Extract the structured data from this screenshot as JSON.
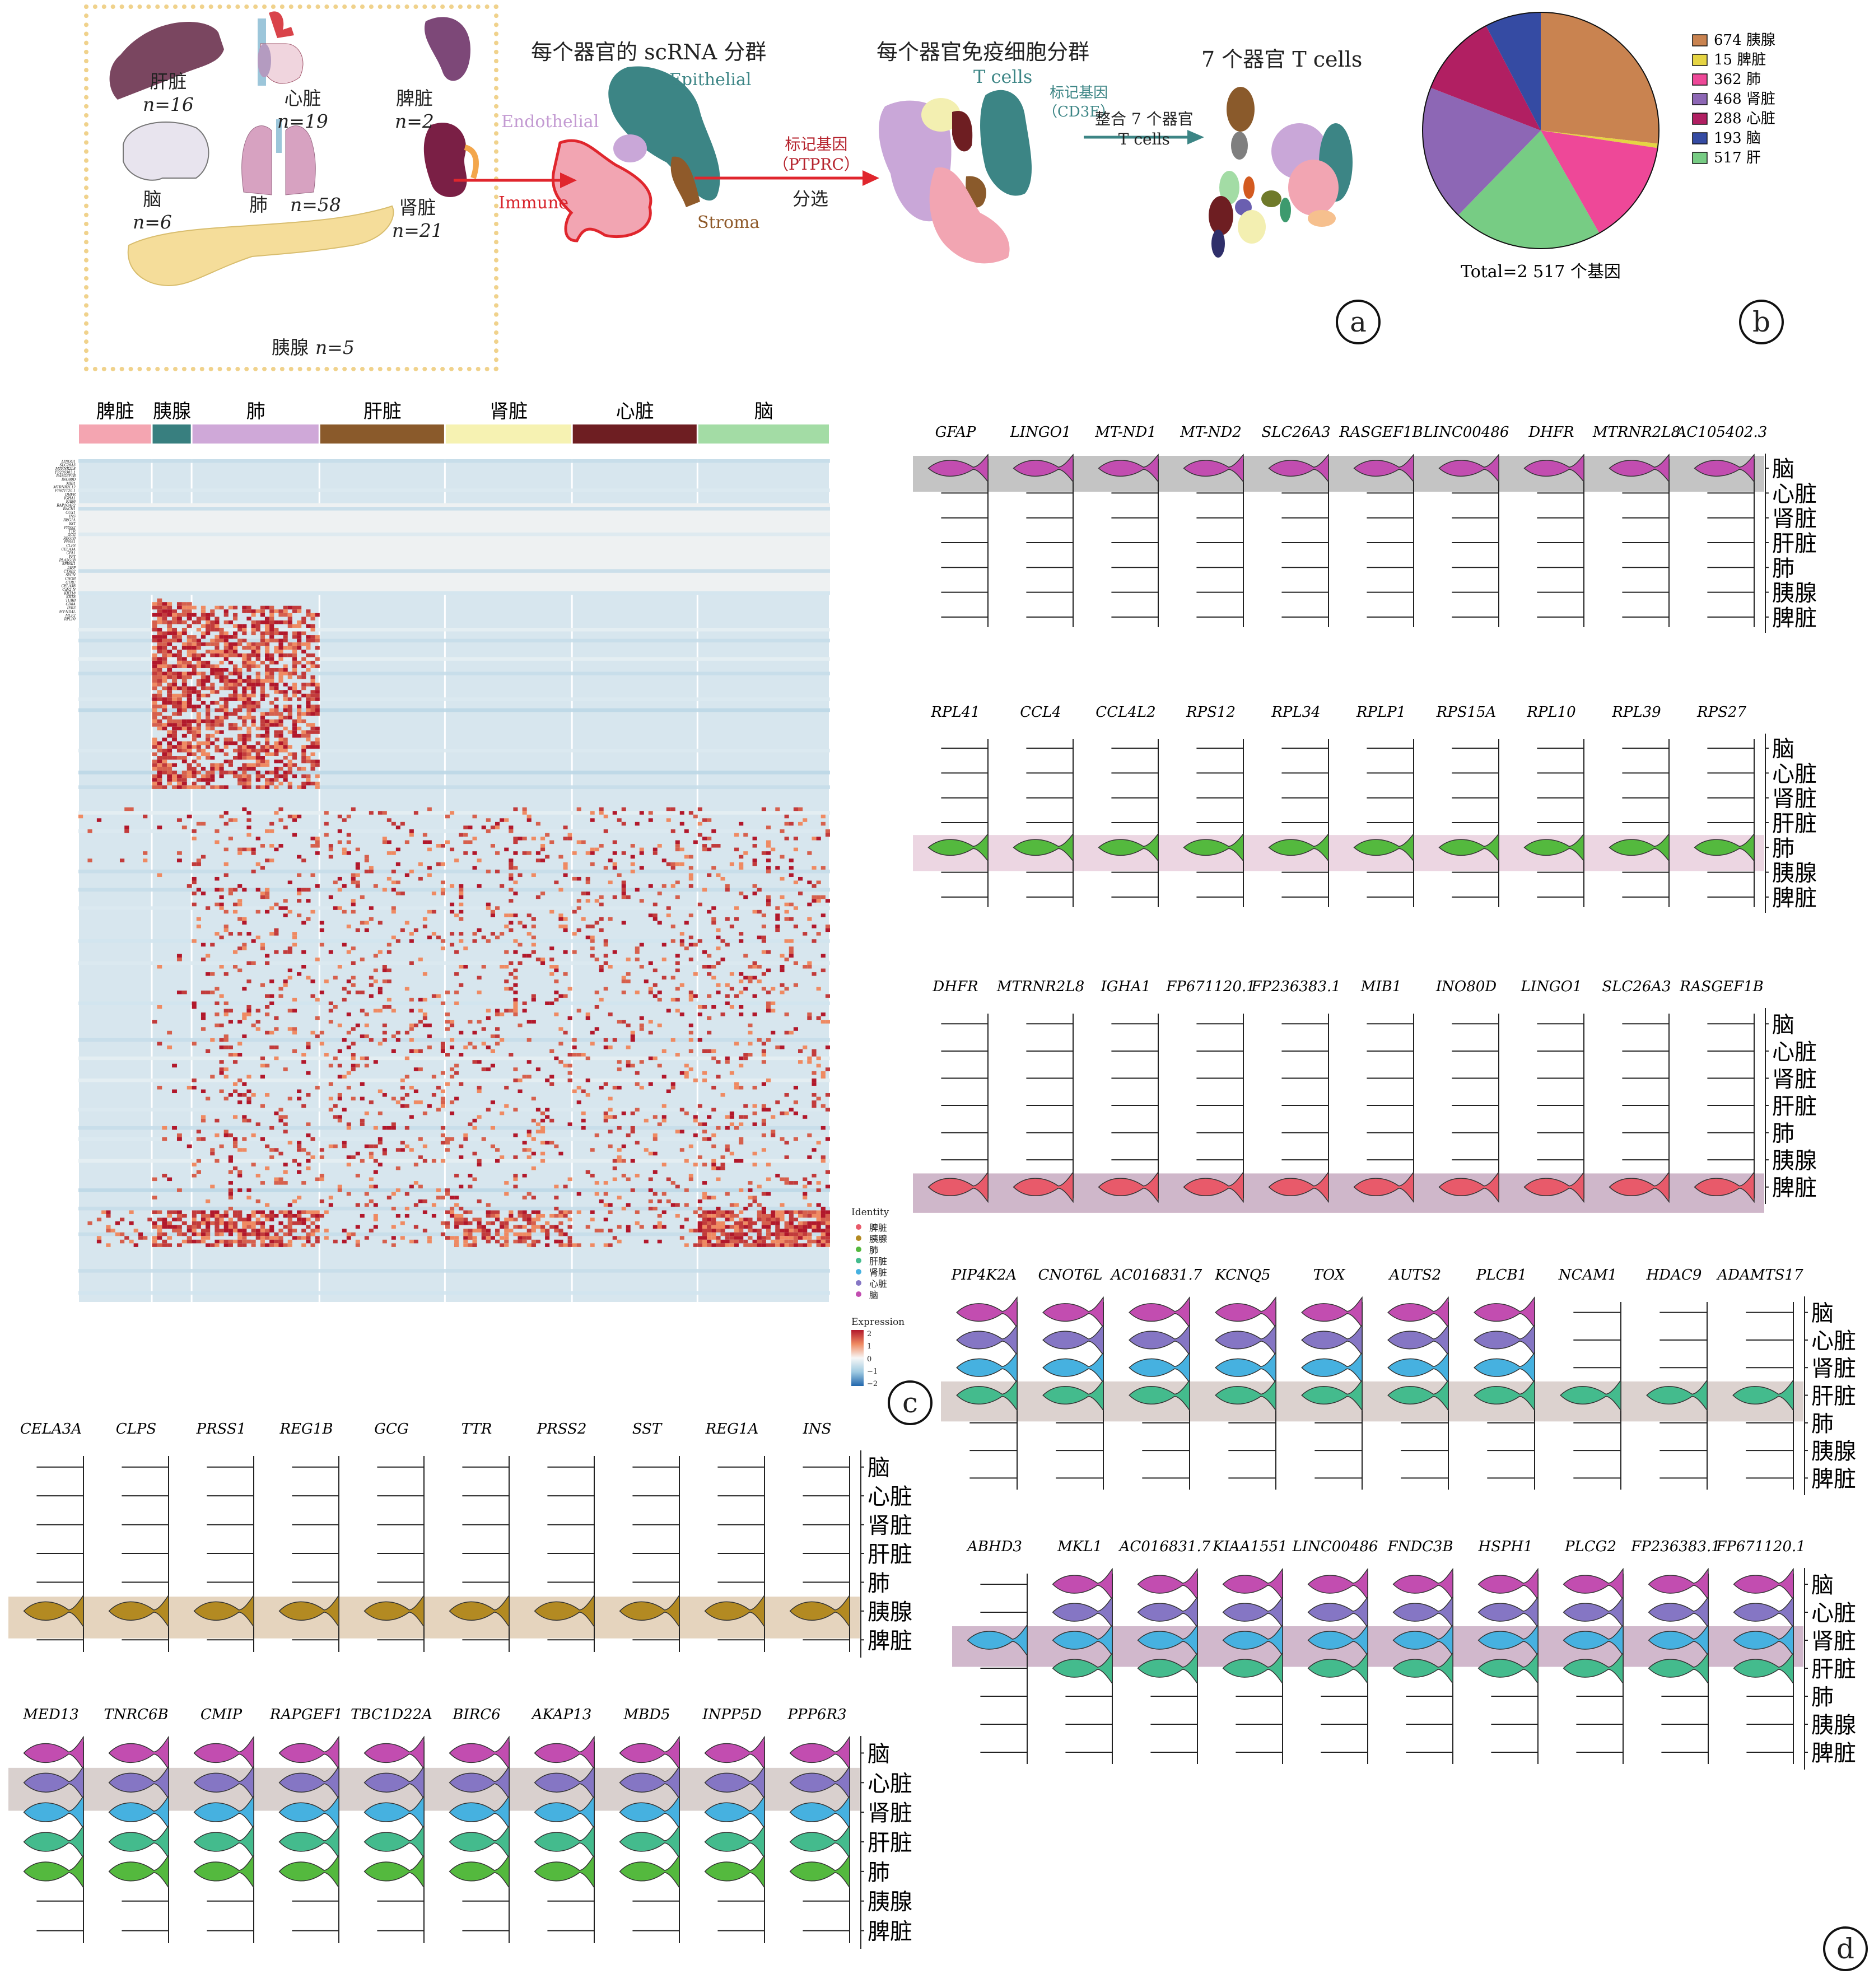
{
  "panels": {
    "a": "a",
    "b": "b",
    "c": "c",
    "d": "d"
  },
  "panel_a": {
    "organs": [
      {
        "name": "肝脏",
        "n": "n=16",
        "color": "#7a4660"
      },
      {
        "name": "心脏",
        "n": "n=19",
        "color": "#d9434a"
      },
      {
        "name": "脾脏",
        "n": "n=2",
        "color": "#7d4878"
      },
      {
        "name": "脑",
        "n": "n=6",
        "color": "#e8e4ee"
      },
      {
        "name": "肺",
        "n": "n=58",
        "color": "#d7a2c1"
      },
      {
        "name": "肾脏",
        "n": "n=21",
        "color": "#7a1f45"
      },
      {
        "name": "胰腺",
        "n": "n=5",
        "color": "#f5dd9a"
      }
    ],
    "step1_title": "每个器官的 scRNA 分群",
    "step2_title": "每个器官免疫细胞分群",
    "step3_title": "7 个器官 T cells",
    "clusters1": {
      "epithelial": "Epithelial",
      "endothelial": "Endothelial",
      "immune": "Immune",
      "stroma": "Stroma"
    },
    "arrow1_label1": "标记基因",
    "arrow1_label2": "（PTPRC）",
    "arrow1_label3": "分选",
    "tcells_label": "T cells",
    "marker2_label1": "标记基因",
    "marker2_label2": "（CD3E）",
    "arrow2_label1": "整合 7 个器官",
    "arrow2_label2": "T cells"
  },
  "chart_data": [
    {
      "type": "pie",
      "id": "panel-b",
      "title": "",
      "caption": "Total=2 517 个基因",
      "slices": [
        {
          "label": "674 胰腺",
          "organ": "胰腺",
          "value": 674,
          "color": "#c98350"
        },
        {
          "label": "15 脾脏",
          "organ": "脾脏",
          "value": 15,
          "color": "#e5d443"
        },
        {
          "label": "362 肺",
          "organ": "肺",
          "value": 362,
          "color": "#ee4898"
        },
        {
          "label": "517 肝",
          "organ": "肝",
          "value": 517,
          "color": "#77cc84"
        },
        {
          "label": "468 肾脏",
          "organ": "肾脏",
          "value": 468,
          "color": "#8d67b5"
        },
        {
          "label": "288 心脏",
          "organ": "心脏",
          "value": 288,
          "color": "#b11f62"
        },
        {
          "label": "193 脑",
          "organ": "脑",
          "value": 193,
          "color": "#354ba3"
        }
      ],
      "legend_order": [
        "674 胰腺",
        "15 脾脏",
        "362 肺",
        "468 肾脏",
        "288 心脏",
        "193 脑",
        "517 肝"
      ],
      "legend": "right"
    },
    {
      "type": "heatmap",
      "id": "panel-c",
      "groups": [
        {
          "label": "脾脏",
          "color": "#f4a5b1",
          "share": 0.098
        },
        {
          "label": "胰腺",
          "color": "#387f7f",
          "share": 0.053
        },
        {
          "label": "肺",
          "color": "#cfa8d8",
          "share": 0.17
        },
        {
          "label": "肝脏",
          "color": "#8a5a2b",
          "share": 0.167
        },
        {
          "label": "肾脏",
          "color": "#f6f2b2",
          "share": 0.169
        },
        {
          "label": "心脏",
          "color": "#6e1e22",
          "share": 0.167
        },
        {
          "label": "脑",
          "color": "#a3dca5",
          "share": 0.176
        }
      ],
      "row_labels_visible": [
        "LINGO1",
        "SLC26A3",
        "MTRNR2L8",
        "FP236383.1",
        "RASGEF1B",
        "INO80D",
        "MIB1",
        "MTRNR2L12",
        "FP671120.1",
        "DHFR",
        "IGHA1",
        "RAB6",
        "RAP1GAP2",
        "BACH1",
        "CUX1",
        "INS",
        "REG1A",
        "SST",
        "PRSS2",
        "TTR",
        "GCG",
        "REG1B",
        "PRSS1",
        "CLPS",
        "CELA3A",
        "CPA1",
        "PPY",
        "PLA2G1B",
        "SPINK1",
        "IAPP",
        "CTRB2",
        "SYCN",
        "CHGB",
        "CTRC",
        "CELA3B",
        "CaV2-N",
        "KRT18",
        "KRT8",
        "TUBB",
        "CD8A",
        "IER3",
        "MT-ND4L",
        "MLF2",
        "RPLP0"
      ],
      "legend_identity_title": "Identity",
      "legend_identity": [
        {
          "label": "脾脏",
          "color": "#e85a6a"
        },
        {
          "label": "胰腺",
          "color": "#b38a22"
        },
        {
          "label": "肺",
          "color": "#54b93e"
        },
        {
          "label": "肝脏",
          "color": "#44bb8d"
        },
        {
          "label": "肾脏",
          "color": "#46b1e0"
        },
        {
          "label": "心脏",
          "color": "#8576c4"
        },
        {
          "label": "脑",
          "color": "#c24db0"
        }
      ],
      "legend_expression_title": "Expression",
      "colorbar_ticks": [
        "2",
        "1",
        "0",
        "−1",
        "−2"
      ],
      "color_range": [
        -2,
        2
      ]
    },
    {
      "type": "violin",
      "id": "panel-c-pancreas",
      "highlight": "胰腺",
      "rows": [
        "脑",
        "心脏",
        "肾脏",
        "肝脏",
        "肺",
        "胰腺",
        "脾脏"
      ],
      "genes": [
        "CELA3A",
        "CLPS",
        "PRSS1",
        "REG1B",
        "GCG",
        "TTR",
        "PRSS2",
        "SST",
        "REG1A",
        "INS"
      ]
    },
    {
      "type": "violin",
      "id": "panel-d-heart",
      "highlight": "心脏",
      "rows": [
        "脑",
        "心脏",
        "肾脏",
        "肝脏",
        "肺",
        "胰腺",
        "脾脏"
      ],
      "genes": [
        "MED13",
        "TNRC6B",
        "CMIP",
        "RAPGEF1",
        "TBC1D22A",
        "BIRC6",
        "AKAP13",
        "MBD5",
        "INPP5D",
        "PPP6R3"
      ]
    },
    {
      "type": "violin",
      "id": "panel-d-brain",
      "highlight": "脑",
      "rows": [
        "脑",
        "心脏",
        "肾脏",
        "肝脏",
        "肺",
        "胰腺",
        "脾脏"
      ],
      "genes": [
        "GFAP",
        "LINGO1",
        "MT-ND1",
        "MT-ND2",
        "SLC26A3",
        "RASGEF1B",
        "LINC00486",
        "DHFR",
        "MTRNR2L8",
        "AC105402.3"
      ]
    },
    {
      "type": "violin",
      "id": "panel-d-lung",
      "highlight": "肺",
      "rows": [
        "脑",
        "心脏",
        "肾脏",
        "肝脏",
        "肺",
        "胰腺",
        "脾脏"
      ],
      "genes": [
        "RPL41",
        "CCL4",
        "CCL4L2",
        "RPS12",
        "RPL34",
        "RPLP1",
        "RPS15A",
        "RPL10",
        "RPL39",
        "RPS27"
      ]
    },
    {
      "type": "violin",
      "id": "panel-d-spleen",
      "highlight": "脾脏",
      "rows": [
        "脑",
        "心脏",
        "肾脏",
        "肝脏",
        "肺",
        "胰腺",
        "脾脏"
      ],
      "genes": [
        "DHFR",
        "MTRNR2L8",
        "IGHA1",
        "FP671120.1",
        "FP236383.1",
        "MIB1",
        "INO80D",
        "LINGO1",
        "SLC26A3",
        "RASGEF1B"
      ]
    },
    {
      "type": "violin",
      "id": "panel-d-liver",
      "highlight": "肝脏",
      "rows": [
        "脑",
        "心脏",
        "肾脏",
        "肝脏",
        "肺",
        "胰腺",
        "脾脏"
      ],
      "genes": [
        "PIP4K2A",
        "CNOT6L",
        "AC016831.7",
        "KCNQ5",
        "TOX",
        "AUTS2",
        "PLCB1",
        "NCAM1",
        "HDAC9",
        "ADAMTS17"
      ]
    },
    {
      "type": "violin",
      "id": "panel-d-kidney",
      "highlight": "肾脏",
      "rows": [
        "脑",
        "心脏",
        "肾脏",
        "肝脏",
        "肺",
        "胰腺",
        "脾脏"
      ],
      "genes": [
        "ABHD3",
        "MKL1",
        "AC016831.7",
        "KIAA1551",
        "LINC00486",
        "FNDC3B",
        "HSPH1",
        "PLCG2",
        "FP236383.1",
        "FP671120.1"
      ]
    }
  ],
  "organ_colors": {
    "脑": "#c24db0",
    "心脏": "#8576c4",
    "肾脏": "#46b1e0",
    "肝脏": "#44bb8d",
    "肺": "#54b93e",
    "胰腺": "#b38a22",
    "脾脏": "#e85a6a"
  },
  "highlight_colors": {
    "脑": "#c4c4c4",
    "肺": "#ecd6e2",
    "脾脏": "#cfb7ca",
    "肝脏": "#dcd2cf",
    "肾脏": "#d1b8cc",
    "胰腺": "#e5d4be",
    "心脏": "#d9d0ce"
  }
}
